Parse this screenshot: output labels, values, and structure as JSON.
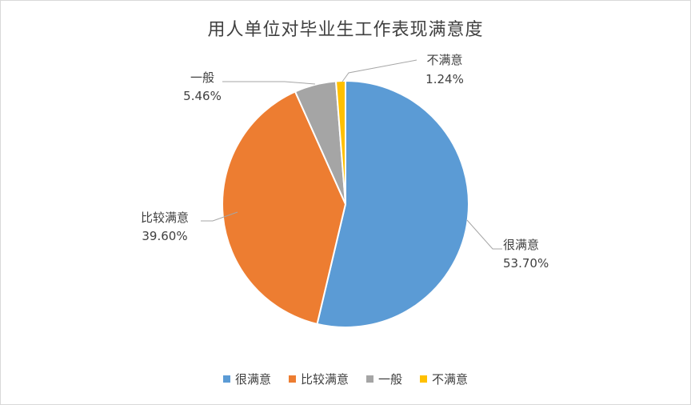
{
  "chart_data": {
    "type": "pie",
    "title": "用人单位对毕业生工作表现满意度",
    "categories": [
      "很满意",
      "比较满意",
      "一般",
      "不满意"
    ],
    "values": [
      53.7,
      39.6,
      5.46,
      1.24
    ],
    "value_labels": [
      "53.70%",
      "39.60%",
      "5.46%",
      "1.24%"
    ],
    "colors": [
      "#5B9BD5",
      "#ED7D31",
      "#A5A5A5",
      "#FFC000"
    ],
    "legend_position": "bottom"
  }
}
